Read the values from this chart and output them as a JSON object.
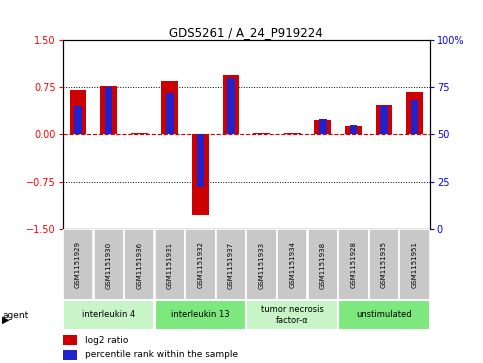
{
  "title": "GDS5261 / A_24_P919224",
  "samples": [
    "GSM1151929",
    "GSM1151930",
    "GSM1151936",
    "GSM1151931",
    "GSM1151932",
    "GSM1151937",
    "GSM1151933",
    "GSM1151934",
    "GSM1151938",
    "GSM1151928",
    "GSM1151935",
    "GSM1151951"
  ],
  "log2_ratio": [
    0.7,
    0.77,
    0.02,
    0.85,
    -1.28,
    0.95,
    0.02,
    0.02,
    0.22,
    0.13,
    0.47,
    0.68
  ],
  "percentile": [
    65,
    75,
    50,
    72,
    22,
    80,
    50,
    50,
    58,
    55,
    65,
    68
  ],
  "agents": [
    {
      "label": "interleukin 4",
      "start": 0,
      "end": 3,
      "color": "#c8f5c8"
    },
    {
      "label": "interleukin 13",
      "start": 3,
      "end": 6,
      "color": "#7de87d"
    },
    {
      "label": "tumor necrosis\nfactor-α",
      "start": 6,
      "end": 9,
      "color": "#c8f5c8"
    },
    {
      "label": "unstimulated",
      "start": 9,
      "end": 12,
      "color": "#7de87d"
    }
  ],
  "ylim": [
    -1.5,
    1.5
  ],
  "yticks_left": [
    -1.5,
    -0.75,
    0,
    0.75,
    1.5
  ],
  "bar_color_red": "#cc0000",
  "bar_color_blue": "#2222cc",
  "bar_width": 0.55,
  "blue_bar_width": 0.25,
  "sample_box_color": "#c8c8c8",
  "agent_label": "agent"
}
